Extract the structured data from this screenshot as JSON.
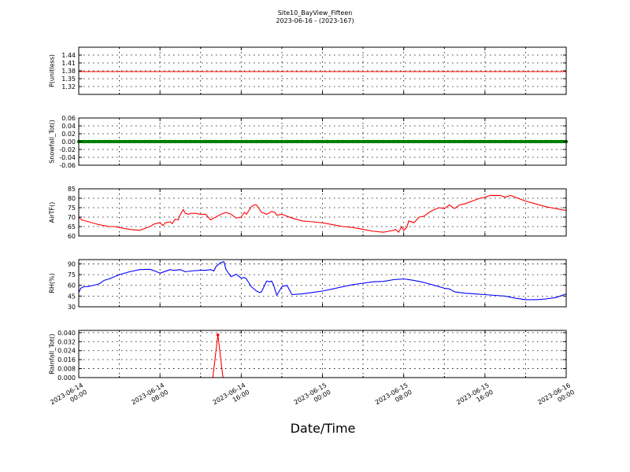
{
  "title": {
    "line1": "Site10_BayView_Fifteen",
    "line2": "2023-06-16 - (2023-167)"
  },
  "xlabel": "Date/Time",
  "chart_data": [
    {
      "type": "line",
      "ylabel": "P(unitless)",
      "ylim": [
        1.29,
        1.47
      ],
      "yticks": [
        "1.44",
        "1.41",
        "1.38",
        "1.35",
        "1.32"
      ],
      "grid": true,
      "color": "#ff0000",
      "series": [
        {
          "x": [
            0,
            48
          ],
          "values": [
            1.377,
            1.377
          ]
        }
      ]
    },
    {
      "type": "line",
      "ylabel": "Snowfall_Tot()",
      "ylim": [
        -0.06,
        0.06
      ],
      "yticks": [
        "0.06",
        "0.04",
        "0.02",
        "0.00",
        "-0.02",
        "-0.04",
        "-0.06"
      ],
      "grid": true,
      "color": "#008000",
      "marker": "dot",
      "series": [
        {
          "x": [
            0,
            48
          ],
          "values": [
            0.0,
            0.0
          ]
        }
      ]
    },
    {
      "type": "line",
      "ylabel": "AirTF()",
      "ylim": [
        60,
        85
      ],
      "yticks": [
        "85",
        "80",
        "75",
        "70",
        "65",
        "60"
      ],
      "grid": true,
      "color": "#ff0000",
      "series": [
        {
          "x": [
            0,
            0.3,
            1,
            2,
            3,
            3.5,
            4,
            4.5,
            5,
            6,
            7,
            7.5,
            8,
            8.3,
            8.5,
            9,
            9.2,
            9.5,
            9.8,
            10,
            10.3,
            10.5,
            10.8,
            11,
            11.5,
            12,
            12.5,
            13,
            13.3,
            13.5,
            14,
            14.5,
            15,
            15.5,
            16,
            16.3,
            16.5,
            17,
            17.3,
            17.5,
            18,
            18.3,
            18.5,
            19,
            19.3,
            19.5,
            20,
            21,
            22,
            23,
            24,
            25,
            26,
            27,
            28,
            29,
            30,
            30.5,
            31,
            31.2,
            31.5,
            31.8,
            32,
            32.3,
            32.5,
            33,
            33.5,
            34,
            34.5,
            35,
            35.5,
            36,
            36.5,
            37,
            37.5,
            38,
            39,
            39.5,
            40,
            40.5,
            41,
            41.5,
            42,
            42.5,
            43,
            44,
            45,
            46,
            47,
            48
          ],
          "values": [
            70,
            68.5,
            67.5,
            66,
            65,
            65,
            64.5,
            64,
            63.5,
            63,
            65,
            66.5,
            67,
            65.5,
            67,
            67.5,
            66.5,
            69,
            68.5,
            71.5,
            74,
            72,
            71.5,
            72,
            72,
            71.5,
            71.5,
            68.5,
            69.5,
            70,
            71.5,
            72.5,
            71.5,
            69.5,
            70,
            72.5,
            71.5,
            75.5,
            76.5,
            76.5,
            72.5,
            72,
            71.5,
            73,
            72.5,
            71,
            71.5,
            69.5,
            68,
            67.5,
            67,
            66,
            65,
            64.5,
            63.5,
            62.5,
            62,
            62.5,
            63,
            63.5,
            62,
            65,
            63,
            64.5,
            68,
            67,
            70,
            70.5,
            72.5,
            74,
            75,
            74.5,
            76.5,
            74.5,
            76.5,
            77,
            79,
            80,
            80.5,
            81.5,
            81.5,
            81.5,
            80.5,
            81.5,
            80.5,
            78.5,
            77,
            75.5,
            74.5,
            73.5
          ]
        }
      ]
    },
    {
      "type": "line",
      "ylabel": "RH(%)",
      "ylim": [
        30,
        96
      ],
      "yticks": [
        "90",
        "75",
        "60",
        "45",
        "30"
      ],
      "grid": true,
      "color": "#0000ff",
      "series": [
        {
          "x": [
            0,
            0.2,
            0.5,
            1,
            2,
            2.5,
            3,
            4,
            5,
            6,
            7,
            7.5,
            8,
            9,
            9.3,
            9.5,
            10,
            10.5,
            11,
            12,
            12.5,
            13,
            13.3,
            13.5,
            14,
            14.3,
            14.5,
            15,
            15.5,
            16,
            16.3,
            16.5,
            17,
            17.5,
            17.8,
            18,
            18.5,
            18.8,
            19,
            19.2,
            19.5,
            20,
            20.5,
            21,
            22,
            23,
            24,
            25,
            26,
            27,
            28,
            29,
            30,
            31,
            32,
            33,
            34,
            35,
            36,
            36.5,
            37,
            37.5,
            38,
            39,
            40,
            41,
            42,
            43,
            44,
            45,
            46,
            47,
            48
          ],
          "values": [
            50,
            56,
            58,
            58.5,
            62,
            67,
            69,
            75,
            79,
            82,
            82.5,
            80,
            77,
            82,
            81,
            81,
            82,
            79,
            80,
            81,
            81,
            82,
            80,
            86,
            92,
            93,
            82,
            72,
            75.5,
            70,
            71,
            69,
            58,
            52,
            50,
            51,
            66,
            65,
            66,
            60,
            46,
            58,
            60,
            47,
            48,
            50,
            52,
            55,
            58,
            61,
            63,
            65,
            65.5,
            68,
            69,
            67,
            64,
            60,
            56,
            55,
            51,
            50,
            49,
            48,
            47,
            46,
            45,
            42,
            40,
            40,
            41,
            43,
            48
          ]
        }
      ]
    },
    {
      "type": "line",
      "ylabel": "Rainfall_Tot()",
      "ylim": [
        0,
        0.042
      ],
      "yticks": [
        "0.040",
        "0.032",
        "0.024",
        "0.016",
        "0.008",
        "0.000"
      ],
      "grid": true,
      "color": "#ff0000",
      "marker": "dot",
      "series": [
        {
          "x": [
            0,
            13.2,
            13.7,
            14.2,
            48
          ],
          "values": [
            0,
            0,
            0.038,
            0,
            0
          ]
        }
      ]
    }
  ],
  "xticks": [
    {
      "x": 0,
      "line1": "2023-06-14",
      "line2": "00:00"
    },
    {
      "x": 8,
      "line1": "2023-06-14",
      "line2": "08:00"
    },
    {
      "x": 16,
      "line1": "2023-06-14",
      "line2": "16:00"
    },
    {
      "x": 24,
      "line1": "2023-06-15",
      "line2": "00:00"
    },
    {
      "x": 32,
      "line1": "2023-06-15",
      "line2": "08:00"
    },
    {
      "x": 40,
      "line1": "2023-06-15",
      "line2": "16:00"
    },
    {
      "x": 48,
      "line1": "2023-06-16",
      "line2": "00:00"
    }
  ]
}
